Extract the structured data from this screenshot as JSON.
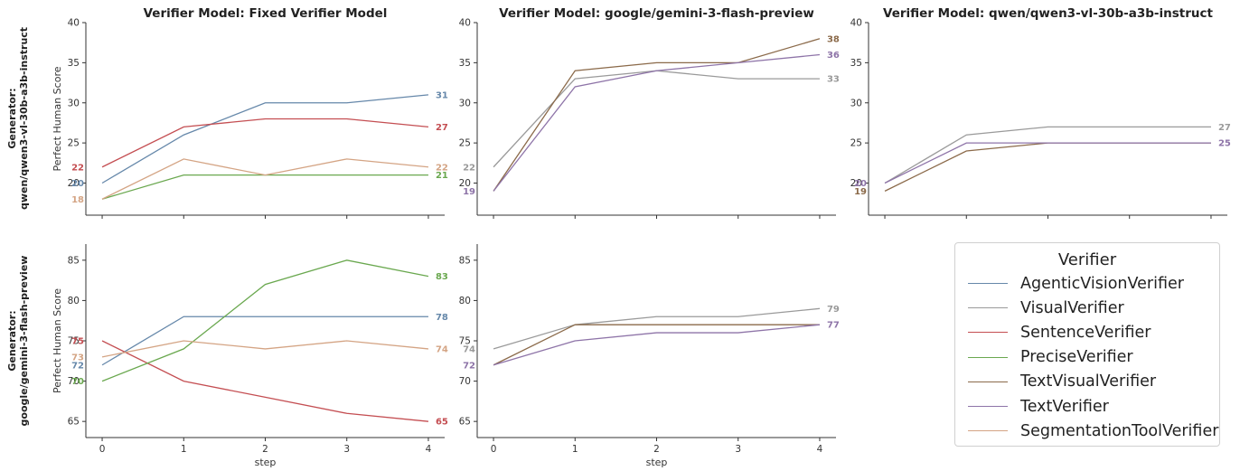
{
  "colors": {
    "AgenticVisionVerifier": "#6688aa",
    "VisualVerifier": "#9a9a9a",
    "SentenceVerifier": "#c44e52",
    "PreciseVerifier": "#6aa84f",
    "TextVisualVerifier": "#8b6a4a",
    "TextVerifier": "#8e74a8",
    "SegmentationToolVerifier": "#d4a484"
  },
  "row_labels": [
    [
      "Generator:",
      "qwen/qwen3-vl-30b-a3b-instruct"
    ],
    [
      "Generator:",
      "google/gemini-3-flash-preview"
    ]
  ],
  "legend": {
    "title": "Verifier",
    "items": [
      "AgenticVisionVerifier",
      "VisualVerifier",
      "SentenceVerifier",
      "PreciseVerifier",
      "TextVisualVerifier",
      "TextVerifier",
      "SegmentationToolVerifier"
    ]
  },
  "chart_data": [
    {
      "type": "line",
      "title": "Verifier Model: Fixed Verifier Model",
      "ylabel": "Perfect Human Score",
      "xlabel": "",
      "x": [
        0,
        1,
        2,
        3,
        4
      ],
      "xlim": [
        -0.2,
        4.2
      ],
      "ylim": [
        16,
        40
      ],
      "yticks": [
        20,
        25,
        30,
        35,
        40
      ],
      "show_xtick_labels": false,
      "series": [
        {
          "name": "AgenticVisionVerifier",
          "values": [
            20,
            26,
            30,
            30,
            31
          ],
          "start_label": "20",
          "end_label": "31"
        },
        {
          "name": "SentenceVerifier",
          "values": [
            22,
            27,
            28,
            28,
            27
          ],
          "start_label": "22",
          "end_label": "27"
        },
        {
          "name": "PreciseVerifier",
          "values": [
            18,
            21,
            21,
            21,
            21
          ],
          "start_label": "",
          "end_label": "21"
        },
        {
          "name": "SegmentationToolVerifier",
          "values": [
            18,
            23,
            21,
            23,
            22
          ],
          "start_label": "18",
          "end_label": "22"
        }
      ]
    },
    {
      "type": "line",
      "title": "Verifier Model: google/gemini-3-flash-preview",
      "ylabel": "",
      "xlabel": "",
      "x": [
        0,
        1,
        2,
        3,
        4
      ],
      "xlim": [
        -0.2,
        4.2
      ],
      "ylim": [
        16,
        40
      ],
      "yticks": [
        20,
        25,
        30,
        35,
        40
      ],
      "show_xtick_labels": false,
      "series": [
        {
          "name": "VisualVerifier",
          "values": [
            22,
            33,
            34,
            33,
            33
          ],
          "start_label": "22",
          "end_label": "33"
        },
        {
          "name": "TextVisualVerifier",
          "values": [
            19,
            34,
            35,
            35,
            38
          ],
          "start_label": "",
          "end_label": "38"
        },
        {
          "name": "TextVerifier",
          "values": [
            19,
            32,
            34,
            35,
            36
          ],
          "start_label": "19",
          "end_label": "36"
        }
      ]
    },
    {
      "type": "line",
      "title": "Verifier Model: qwen/qwen3-vl-30b-a3b-instruct",
      "ylabel": "",
      "xlabel": "",
      "x": [
        0,
        1,
        2,
        3,
        4
      ],
      "xlim": [
        -0.2,
        4.2
      ],
      "ylim": [
        16,
        40
      ],
      "yticks": [
        20,
        25,
        30,
        35,
        40
      ],
      "show_xtick_labels": false,
      "series": [
        {
          "name": "VisualVerifier",
          "values": [
            20,
            26,
            27,
            27,
            27
          ],
          "start_label": "",
          "end_label": "27"
        },
        {
          "name": "TextVisualVerifier",
          "values": [
            19,
            24,
            25,
            25,
            25
          ],
          "start_label": "19",
          "end_label": ""
        },
        {
          "name": "TextVerifier",
          "values": [
            20,
            25,
            25,
            25,
            25
          ],
          "start_label": "20",
          "end_label": "25"
        }
      ]
    },
    {
      "type": "line",
      "title": "",
      "ylabel": "Perfect Human Score",
      "xlabel": "step",
      "x": [
        0,
        1,
        2,
        3,
        4
      ],
      "xlim": [
        -0.2,
        4.2
      ],
      "ylim": [
        63,
        87
      ],
      "yticks": [
        65,
        70,
        75,
        80,
        85
      ],
      "show_xtick_labels": true,
      "series": [
        {
          "name": "AgenticVisionVerifier",
          "values": [
            72,
            78,
            78,
            78,
            78
          ],
          "start_label": "72",
          "end_label": "78"
        },
        {
          "name": "SentenceVerifier",
          "values": [
            75,
            70,
            68,
            66,
            65
          ],
          "start_label": "75",
          "end_label": "65"
        },
        {
          "name": "PreciseVerifier",
          "values": [
            70,
            74,
            82,
            85,
            83
          ],
          "start_label": "70",
          "end_label": "83"
        },
        {
          "name": "SegmentationToolVerifier",
          "values": [
            73,
            75,
            74,
            75,
            74
          ],
          "start_label": "73",
          "end_label": "74"
        }
      ]
    },
    {
      "type": "line",
      "title": "",
      "ylabel": "",
      "xlabel": "step",
      "x": [
        0,
        1,
        2,
        3,
        4
      ],
      "xlim": [
        -0.2,
        4.2
      ],
      "ylim": [
        63,
        87
      ],
      "yticks": [
        65,
        70,
        75,
        80,
        85
      ],
      "show_xtick_labels": true,
      "series": [
        {
          "name": "VisualVerifier",
          "values": [
            74,
            77,
            78,
            78,
            79
          ],
          "start_label": "74",
          "end_label": "79"
        },
        {
          "name": "TextVisualVerifier",
          "values": [
            72,
            77,
            77,
            77,
            77
          ],
          "start_label": "",
          "end_label": ""
        },
        {
          "name": "TextVerifier",
          "values": [
            72,
            75,
            76,
            76,
            77
          ],
          "start_label": "72",
          "end_label": "77"
        }
      ]
    }
  ]
}
